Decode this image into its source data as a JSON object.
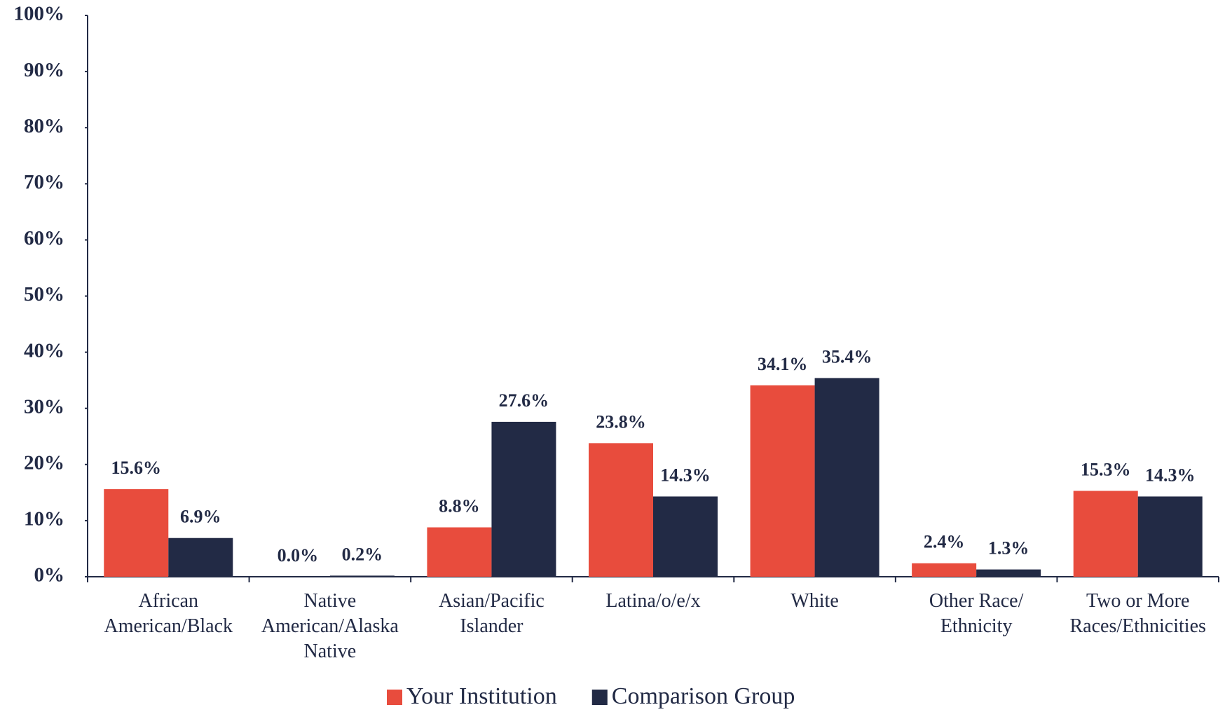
{
  "chart_data": {
    "type": "bar",
    "categories": [
      "African\nAmerican/Black",
      "Native\nAmerican/Alaska\nNative",
      "Asian/Pacific\nIslander",
      "Latina/o/e/x",
      "White",
      "Other Race/\nEthnicity",
      "Two or More\nRaces/Ethnicities"
    ],
    "series": [
      {
        "name": "Your Institution",
        "color": "#e84c3d",
        "values": [
          15.6,
          0.0,
          8.8,
          23.8,
          34.1,
          2.4,
          15.3
        ],
        "value_labels": [
          "15.6%",
          "0.0%",
          "8.8%",
          "23.8%",
          "34.1%",
          "2.4%",
          "15.3%"
        ]
      },
      {
        "name": "Comparison Group",
        "color": "#222a45",
        "values": [
          6.9,
          0.2,
          27.6,
          14.3,
          35.4,
          1.3,
          14.3
        ],
        "value_labels": [
          "6.9%",
          "0.2%",
          "27.6%",
          "14.3%",
          "35.4%",
          "1.3%",
          "14.3%"
        ]
      }
    ],
    "ylim": [
      0,
      100
    ],
    "yticks": [
      {
        "value": 0,
        "label": "0%"
      },
      {
        "value": 10,
        "label": "10%"
      },
      {
        "value": 20,
        "label": "20%"
      },
      {
        "value": 30,
        "label": "30%"
      },
      {
        "value": 40,
        "label": "40%"
      },
      {
        "value": 50,
        "label": "50%"
      },
      {
        "value": 60,
        "label": "60%"
      },
      {
        "value": 70,
        "label": "70%"
      },
      {
        "value": 80,
        "label": "80%"
      },
      {
        "value": 90,
        "label": "90%"
      },
      {
        "value": 100,
        "label": "100%"
      }
    ],
    "legend": "bottom"
  }
}
